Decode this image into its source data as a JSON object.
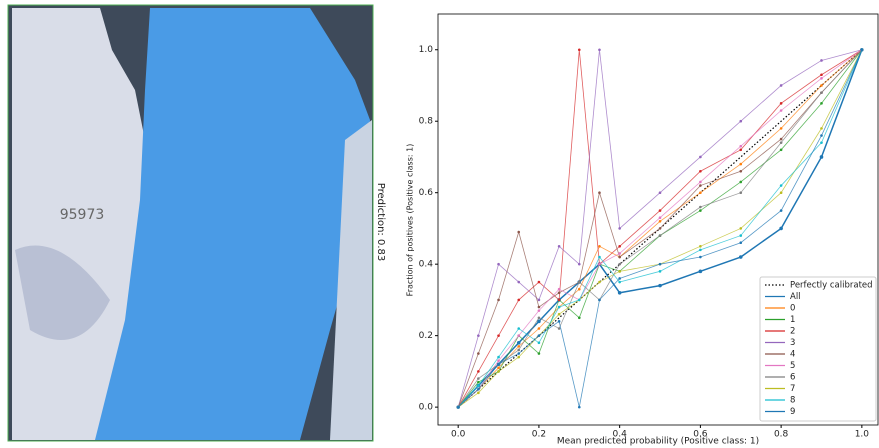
{
  "annotation": "Prediction: 0.83",
  "image_text": "95973",
  "chart_data": {
    "type": "line",
    "xlabel": "Mean predicted probability (Positive class: 1)",
    "ylabel": "Fraction of positives (Positive class: 1)",
    "x": [
      0,
      0.05,
      0.1,
      0.15,
      0.2,
      0.25,
      0.3,
      0.35,
      0.4,
      0.5,
      0.6,
      0.7,
      0.8,
      0.9,
      1.0
    ],
    "xlim": [
      -0.05,
      1.04
    ],
    "ylim": [
      -0.05,
      1.1
    ],
    "xticks": [
      {
        "value": 0,
        "label": "0.0"
      },
      0.2,
      0.4,
      0.6,
      0.8,
      {
        "value": 1,
        "label": "1.0"
      }
    ],
    "yticks": [
      {
        "value": 0,
        "label": "0.0"
      },
      0.2,
      0.4,
      0.6,
      0.8,
      {
        "value": 1,
        "label": "1.0"
      }
    ],
    "legend": "lower right",
    "series": [
      {
        "name": "Perfectly calibrated",
        "color": "#000000",
        "linestyle": "dotted",
        "values": [
          0,
          0.05,
          0.1,
          0.15,
          0.2,
          0.25,
          0.3,
          0.35,
          0.4,
          0.5,
          0.6,
          0.7,
          0.8,
          0.9,
          1.0
        ]
      },
      {
        "name": "All",
        "color": "#1f77b4",
        "values": [
          0,
          0.06,
          0.12,
          0.18,
          0.24,
          0.3,
          0.35,
          0.4,
          0.32,
          0.34,
          0.38,
          0.42,
          0.5,
          0.7,
          1.0
        ]
      },
      {
        "name": "0",
        "color": "#ff7f0e",
        "values": [
          0,
          0.05,
          0.11,
          0.17,
          0.22,
          0.28,
          0.33,
          0.45,
          0.42,
          0.52,
          0.6,
          0.68,
          0.78,
          0.9,
          1.0
        ]
      },
      {
        "name": "1",
        "color": "#2ca02c",
        "values": [
          0,
          0.07,
          0.1,
          0.2,
          0.15,
          0.3,
          0.25,
          0.4,
          0.38,
          0.48,
          0.55,
          0.63,
          0.72,
          0.85,
          1.0
        ]
      },
      {
        "name": "2",
        "color": "#d62728",
        "values": [
          0,
          0.1,
          0.2,
          0.3,
          0.35,
          0.3,
          1.0,
          0.4,
          0.45,
          0.55,
          0.66,
          0.72,
          0.85,
          0.93,
          1.0
        ]
      },
      {
        "name": "3",
        "color": "#9467bd",
        "values": [
          0,
          0.2,
          0.4,
          0.35,
          0.3,
          0.45,
          0.4,
          1.0,
          0.5,
          0.6,
          0.7,
          0.8,
          0.9,
          0.97,
          1.0
        ]
      },
      {
        "name": "4",
        "color": "#8c564b",
        "values": [
          0,
          0.15,
          0.3,
          0.49,
          0.28,
          0.32,
          0.35,
          0.6,
          0.42,
          0.5,
          0.62,
          0.66,
          0.75,
          0.88,
          1.0
        ]
      },
      {
        "name": "5",
        "color": "#e377c2",
        "values": [
          0,
          0.05,
          0.13,
          0.2,
          0.27,
          0.33,
          0.3,
          0.4,
          0.43,
          0.53,
          0.63,
          0.73,
          0.83,
          0.92,
          1.0
        ]
      },
      {
        "name": "6",
        "color": "#7f7f7f",
        "values": [
          0,
          0.08,
          0.12,
          0.16,
          0.25,
          0.22,
          0.35,
          0.3,
          0.4,
          0.48,
          0.56,
          0.6,
          0.74,
          0.88,
          1.0
        ]
      },
      {
        "name": "7",
        "color": "#bcbd22",
        "values": [
          0,
          0.04,
          0.1,
          0.14,
          0.2,
          0.26,
          0.3,
          0.35,
          0.38,
          0.4,
          0.45,
          0.5,
          0.6,
          0.78,
          1.0
        ]
      },
      {
        "name": "8",
        "color": "#17becf",
        "values": [
          0,
          0.06,
          0.14,
          0.22,
          0.18,
          0.28,
          0.3,
          0.42,
          0.35,
          0.38,
          0.44,
          0.48,
          0.62,
          0.74,
          1.0
        ]
      },
      {
        "name": "9",
        "color": "#1f77b4",
        "values": [
          0,
          0.05,
          0.12,
          0.15,
          0.2,
          0.24,
          0.0,
          0.3,
          0.36,
          0.4,
          0.42,
          0.46,
          0.55,
          0.76,
          1.0
        ]
      }
    ]
  }
}
